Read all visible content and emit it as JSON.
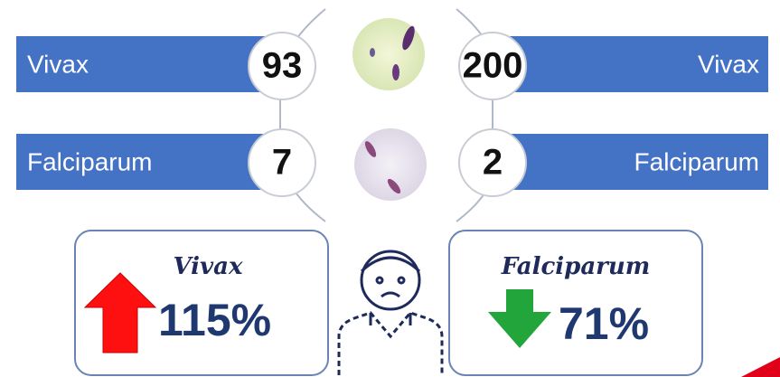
{
  "left": [
    {
      "label": "Vivax",
      "count": 93
    },
    {
      "label": "Falciparum",
      "count": 7
    }
  ],
  "right": [
    {
      "label": "Vivax",
      "count": 200
    },
    {
      "label": "Falciparum",
      "count": 2
    }
  ],
  "changes": [
    {
      "label": "Vivax",
      "change": "115%"
    },
    {
      "label": "Falciparum",
      "change": "71%"
    }
  ]
}
